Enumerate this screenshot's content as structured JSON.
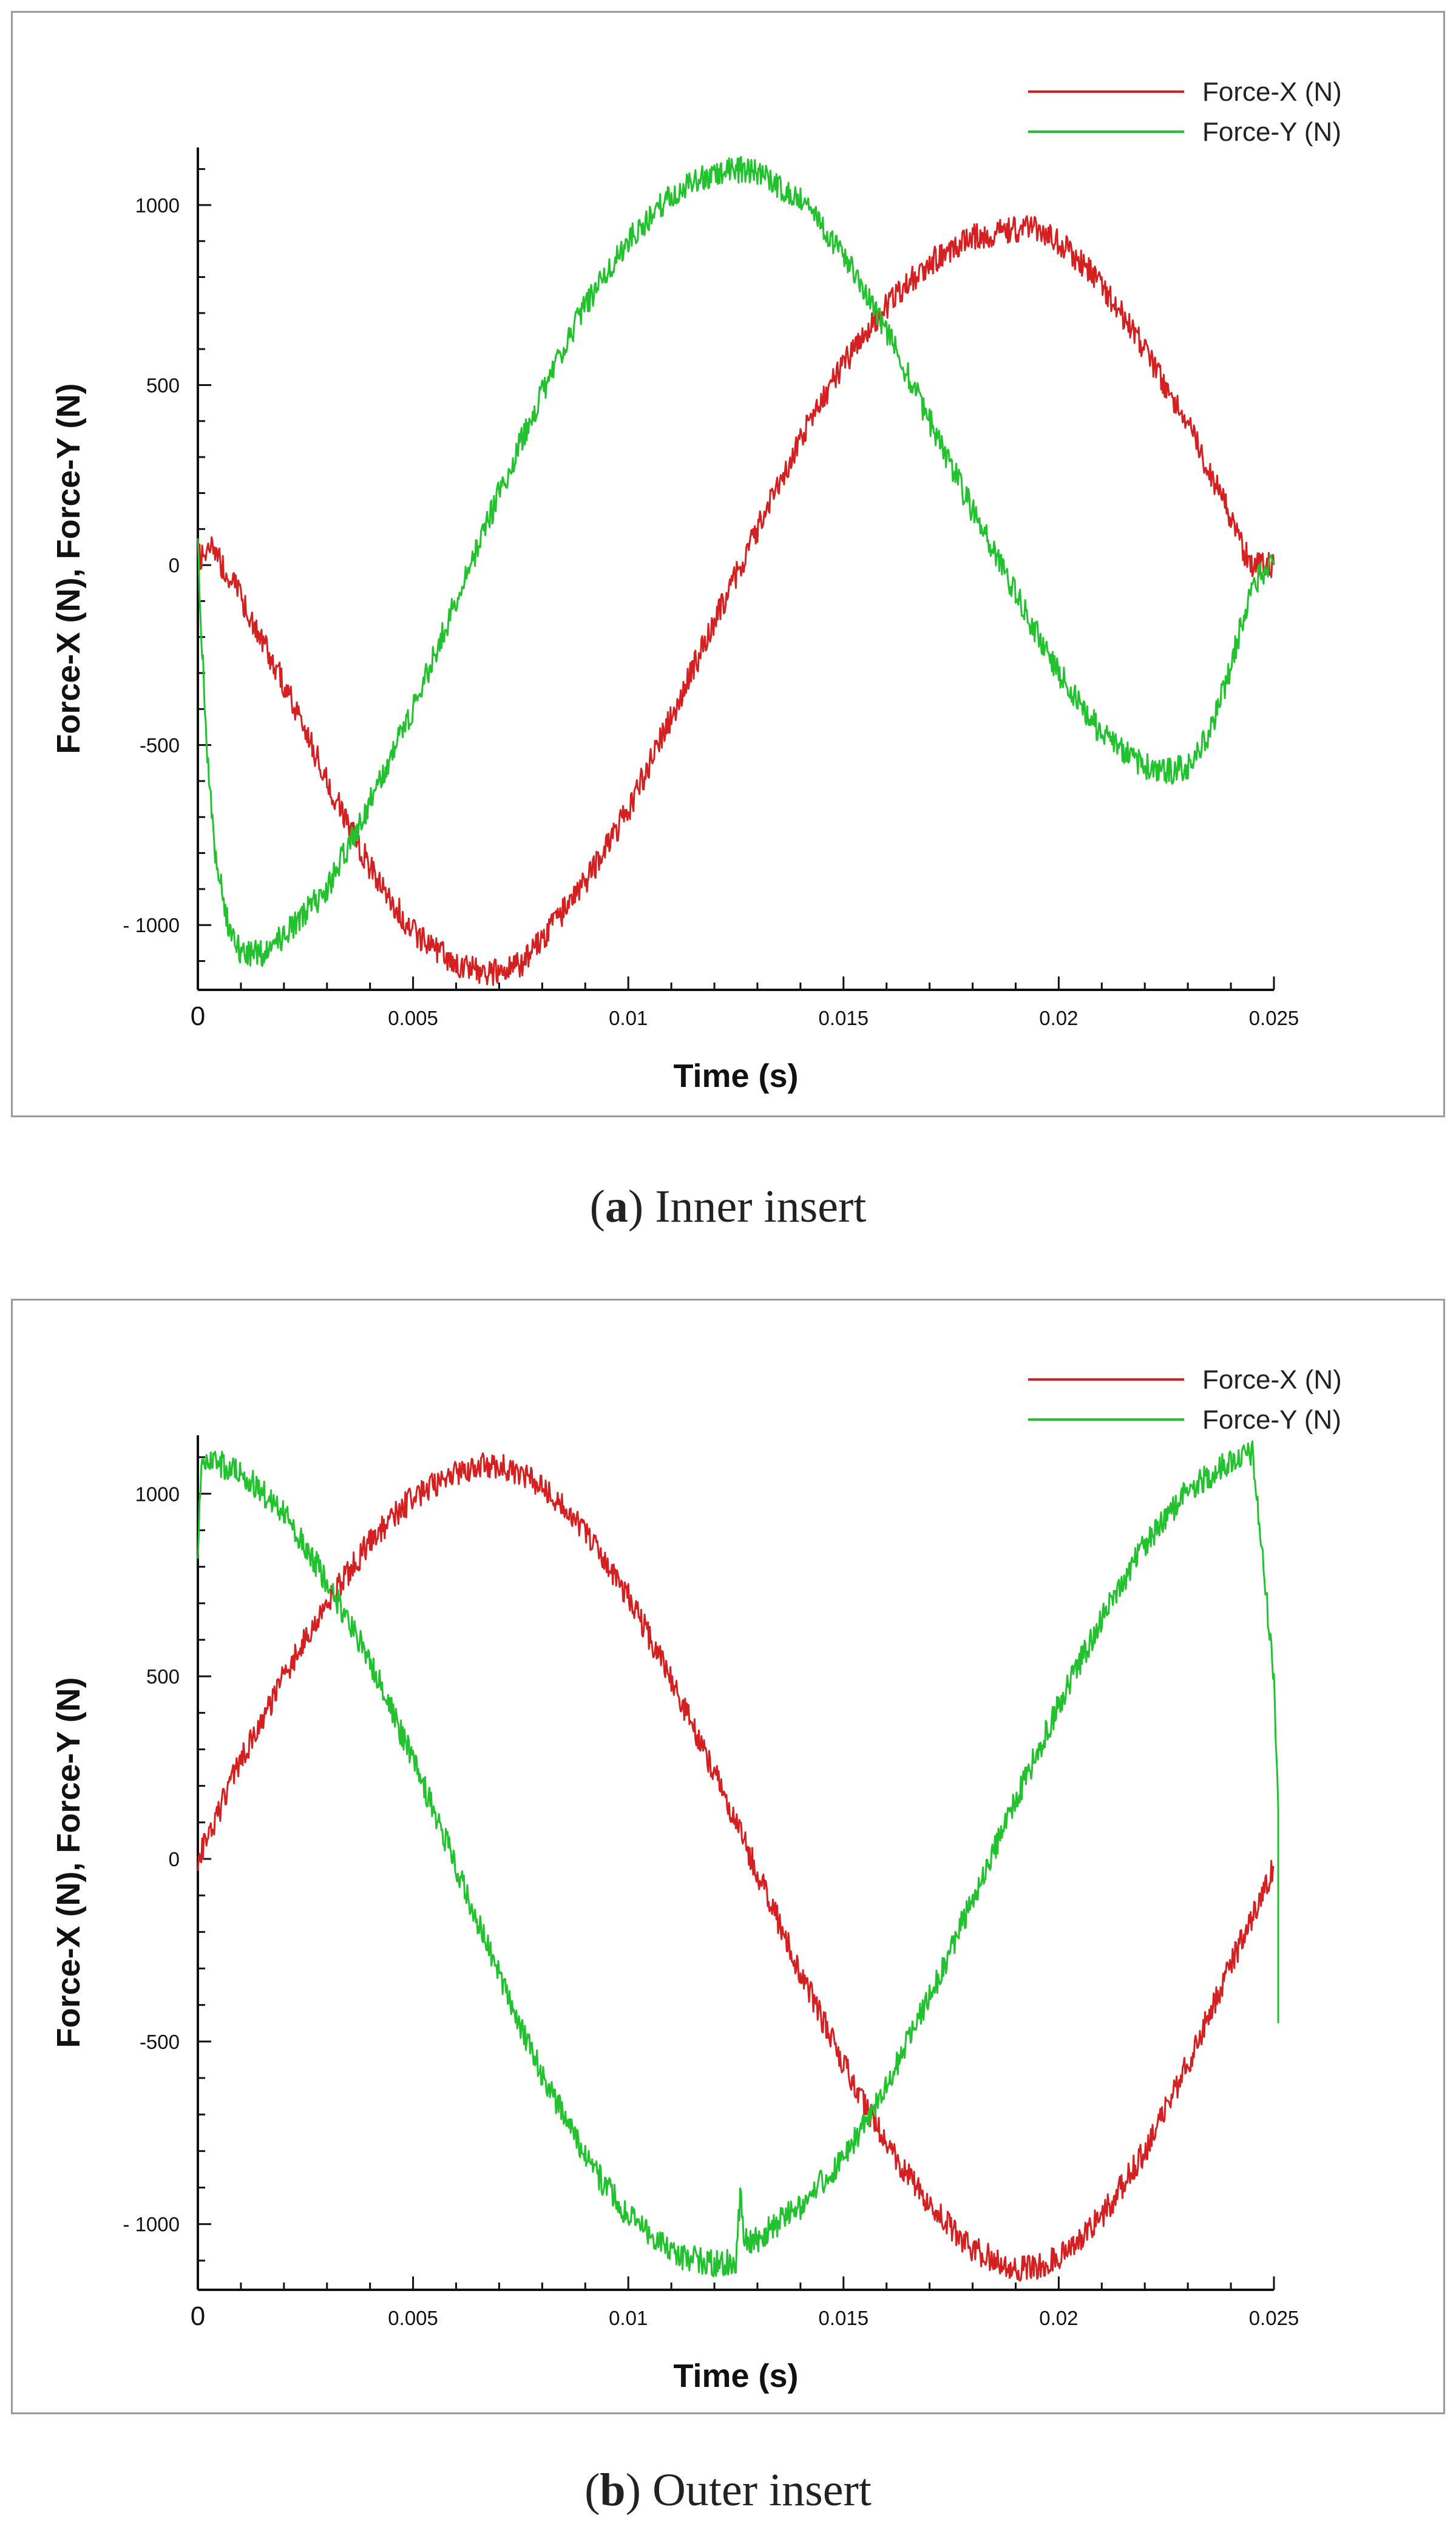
{
  "chart_data": [
    {
      "type": "line",
      "panel_id": "a",
      "xlabel": "Time (s)",
      "ylabel": "Force-X (N), Force-Y (N)",
      "xlim": [
        0,
        0.025
      ],
      "ylim": [
        -1180,
        1160
      ],
      "xticks": [
        0,
        0.005,
        0.01,
        0.015,
        0.02,
        0.025
      ],
      "xtick_labels": [
        "0",
        "0.005",
        "0.01",
        "0.015",
        "0.02",
        "0.025"
      ],
      "yticks": [
        -1000,
        -500,
        0,
        500,
        1000
      ],
      "ytick_labels": [
        "- 1000",
        "-500",
        "0",
        "500",
        "1000"
      ],
      "legend_position": "top-right",
      "series": [
        {
          "name": "Force-X (N)",
          "color": "#d42020",
          "x": [
            0,
            0.0003,
            0.0008,
            0.0015,
            0.002,
            0.003,
            0.004,
            0.005,
            0.006,
            0.0068,
            0.0075,
            0.008,
            0.009,
            0.01,
            0.011,
            0.012,
            0.013,
            0.014,
            0.015,
            0.016,
            0.017,
            0.018,
            0.019,
            0.0195,
            0.02,
            0.021,
            0.022,
            0.023,
            0.024,
            0.0243,
            0.0245,
            0.025
          ],
          "y": [
            20,
            45,
            -40,
            -210,
            -330,
            -600,
            -840,
            -1020,
            -1110,
            -1135,
            -1110,
            -1040,
            -880,
            -680,
            -420,
            -160,
            100,
            350,
            560,
            720,
            840,
            910,
            935,
            930,
            900,
            780,
            600,
            390,
            130,
            40,
            0,
            0
          ]
        },
        {
          "name": "Force-Y (N)",
          "color": "#22c22e",
          "x": [
            0,
            0.0002,
            0.0004,
            0.0007,
            0.001,
            0.0015,
            0.002,
            0.003,
            0.004,
            0.005,
            0.006,
            0.007,
            0.008,
            0.009,
            0.01,
            0.011,
            0.012,
            0.0125,
            0.013,
            0.014,
            0.015,
            0.016,
            0.017,
            0.018,
            0.019,
            0.02,
            0.021,
            0.022,
            0.0225,
            0.023,
            0.0235,
            0.024,
            0.0245,
            0.025
          ],
          "y": [
            40,
            -500,
            -800,
            -1000,
            -1080,
            -1080,
            -1030,
            -900,
            -660,
            -400,
            -100,
            200,
            480,
            720,
            900,
            1030,
            1090,
            1100,
            1090,
            1020,
            860,
            650,
            400,
            150,
            -80,
            -300,
            -470,
            -560,
            -575,
            -560,
            -470,
            -280,
            -50,
            0
          ]
        }
      ]
    },
    {
      "type": "line",
      "panel_id": "b",
      "xlabel": "Time (s)",
      "ylabel": "Force-X (N), Force-Y (N)",
      "xlim": [
        0,
        0.025
      ],
      "ylim": [
        -1180,
        1160
      ],
      "xticks": [
        0,
        0.005,
        0.01,
        0.015,
        0.02,
        0.025
      ],
      "xtick_labels": [
        "0",
        "0.005",
        "0.01",
        "0.015",
        "0.02",
        "0.025"
      ],
      "yticks": [
        -1000,
        -500,
        0,
        500,
        1000
      ],
      "ytick_labels": [
        "- 1000",
        "-500",
        "0",
        "500",
        "1000"
      ],
      "legend_position": "top-right",
      "series": [
        {
          "name": "Force-X (N)",
          "color": "#d42020",
          "x": [
            0,
            0.001,
            0.002,
            0.003,
            0.004,
            0.005,
            0.006,
            0.0068,
            0.0075,
            0.008,
            0.009,
            0.01,
            0.011,
            0.012,
            0.013,
            0.014,
            0.015,
            0.016,
            0.017,
            0.018,
            0.019,
            0.0195,
            0.02,
            0.021,
            0.022,
            0.023,
            0.024,
            0.025
          ],
          "y": [
            0,
            270,
            500,
            700,
            870,
            990,
            1060,
            1080,
            1060,
            1020,
            900,
            720,
            490,
            240,
            -40,
            -310,
            -560,
            -780,
            -950,
            -1070,
            -1120,
            -1120,
            -1090,
            -980,
            -800,
            -560,
            -290,
            -20
          ]
        },
        {
          "name": "Force-Y (N)",
          "color": "#22c22e",
          "x": [
            0,
            0.0001,
            0.001,
            0.002,
            0.003,
            0.004,
            0.005,
            0.006,
            0.007,
            0.008,
            0.009,
            0.01,
            0.011,
            0.012,
            0.0125,
            0.0126,
            0.0127,
            0.013,
            0.014,
            0.015,
            0.016,
            0.017,
            0.018,
            0.019,
            0.02,
            0.021,
            0.022,
            0.023,
            0.024,
            0.0245,
            0.025,
            0.0251,
            0.0251
          ],
          "y": [
            850,
            1100,
            1060,
            950,
            760,
            540,
            270,
            -20,
            -320,
            -590,
            -820,
            -980,
            -1080,
            -1110,
            -1100,
            -920,
            -1050,
            -1040,
            -950,
            -820,
            -620,
            -380,
            -110,
            160,
            420,
            660,
            860,
            1010,
            1090,
            1110,
            500,
            150,
            -450
          ]
        }
      ]
    }
  ],
  "captions": {
    "a": {
      "letter": "a",
      "text": " Inner insert"
    },
    "b": {
      "letter": "b",
      "text": " Outer insert"
    }
  }
}
